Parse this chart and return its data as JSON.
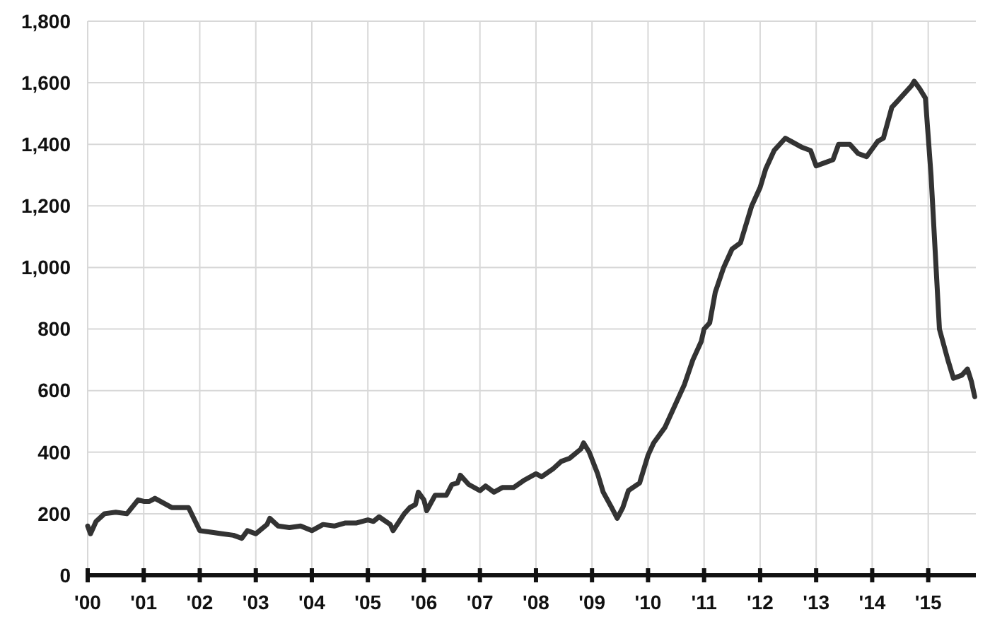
{
  "chart_data": {
    "type": "line",
    "xlim": [
      2000,
      2015.85
    ],
    "ylim": [
      0,
      1800
    ],
    "xticks": [
      {
        "value": 2000,
        "label": "'00"
      },
      {
        "value": 2001,
        "label": "'01"
      },
      {
        "value": 2002,
        "label": "'02"
      },
      {
        "value": 2003,
        "label": "'03"
      },
      {
        "value": 2004,
        "label": "'04"
      },
      {
        "value": 2005,
        "label": "'05"
      },
      {
        "value": 2006,
        "label": "'06"
      },
      {
        "value": 2007,
        "label": "'07"
      },
      {
        "value": 2008,
        "label": "'08"
      },
      {
        "value": 2009,
        "label": "'09"
      },
      {
        "value": 2010,
        "label": "'10"
      },
      {
        "value": 2011,
        "label": "'11"
      },
      {
        "value": 2012,
        "label": "'12"
      },
      {
        "value": 2013,
        "label": "'13"
      },
      {
        "value": 2014,
        "label": "'14"
      },
      {
        "value": 2015,
        "label": "'15"
      }
    ],
    "yticks": [
      0,
      200,
      400,
      600,
      800,
      {
        "value": 1000,
        "label": "1,000"
      },
      {
        "value": 1200,
        "label": "1,200"
      },
      {
        "value": 1400,
        "label": "1,400"
      },
      {
        "value": 1600,
        "label": "1,600"
      },
      {
        "value": 1800,
        "label": "1,800"
      }
    ],
    "grid": true,
    "series": [
      {
        "color": "#333333",
        "x": [
          2000.0,
          2000.05,
          2000.15,
          2000.3,
          2000.5,
          2000.7,
          2000.9,
          2001.0,
          2001.1,
          2001.2,
          2001.35,
          2001.5,
          2001.8,
          2002.0,
          2002.2,
          2002.4,
          2002.6,
          2002.75,
          2002.85,
          2003.0,
          2003.2,
          2003.25,
          2003.4,
          2003.6,
          2003.8,
          2004.0,
          2004.2,
          2004.4,
          2004.6,
          2004.8,
          2005.0,
          2005.1,
          2005.2,
          2005.4,
          2005.45,
          2005.65,
          2005.75,
          2005.85,
          2005.9,
          2006.0,
          2006.05,
          2006.2,
          2006.4,
          2006.5,
          2006.6,
          2006.65,
          2006.8,
          2007.0,
          2007.1,
          2007.25,
          2007.4,
          2007.6,
          2007.8,
          2008.0,
          2008.1,
          2008.3,
          2008.45,
          2008.6,
          2008.8,
          2008.85,
          2008.95,
          2009.1,
          2009.2,
          2009.35,
          2009.45,
          2009.55,
          2009.65,
          2009.85,
          2010.0,
          2010.1,
          2010.3,
          2010.5,
          2010.65,
          2010.8,
          2010.95,
          2011.0,
          2011.1,
          2011.2,
          2011.35,
          2011.5,
          2011.65,
          2011.85,
          2012.0,
          2012.1,
          2012.25,
          2012.45,
          2012.55,
          2012.75,
          2012.9,
          2013.0,
          2013.15,
          2013.3,
          2013.4,
          2013.6,
          2013.75,
          2013.9,
          2014.0,
          2014.1,
          2014.2,
          2014.35,
          2014.5,
          2014.7,
          2014.75,
          2014.85,
          2014.95,
          2015.05,
          2015.2,
          2015.35,
          2015.45,
          2015.6,
          2015.7,
          2015.77,
          2015.83
        ],
        "values": [
          160,
          135,
          175,
          200,
          205,
          200,
          245,
          240,
          240,
          250,
          235,
          220,
          220,
          145,
          140,
          135,
          130,
          120,
          145,
          135,
          165,
          185,
          160,
          155,
          160,
          145,
          165,
          160,
          170,
          170,
          180,
          175,
          190,
          165,
          145,
          200,
          220,
          230,
          270,
          245,
          210,
          260,
          260,
          295,
          300,
          325,
          295,
          275,
          290,
          270,
          285,
          285,
          310,
          330,
          320,
          345,
          370,
          380,
          410,
          430,
          400,
          330,
          270,
          220,
          185,
          220,
          275,
          300,
          390,
          430,
          480,
          560,
          620,
          700,
          760,
          800,
          820,
          920,
          1000,
          1060,
          1080,
          1200,
          1260,
          1320,
          1380,
          1420,
          1410,
          1390,
          1380,
          1330,
          1340,
          1350,
          1400,
          1400,
          1370,
          1360,
          1385,
          1410,
          1420,
          1520,
          1550,
          1590,
          1605,
          1580,
          1550,
          1300,
          800,
          700,
          640,
          650,
          670,
          630,
          580
        ]
      }
    ]
  }
}
